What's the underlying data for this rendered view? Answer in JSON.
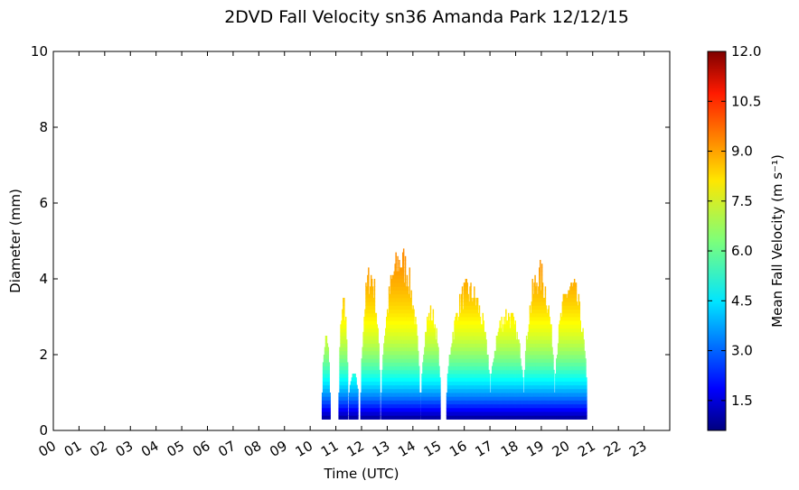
{
  "chart_data": {
    "type": "heatmap",
    "title": "2DVD Fall Velocity sn36 Amanda Park 12/12/15",
    "xlabel": "Time (UTC)",
    "ylabel": "Diameter (mm)",
    "x_ticks": [
      "00",
      "01",
      "02",
      "03",
      "04",
      "05",
      "06",
      "07",
      "08",
      "09",
      "10",
      "11",
      "12",
      "13",
      "14",
      "15",
      "16",
      "17",
      "18",
      "19",
      "20",
      "21",
      "22",
      "23"
    ],
    "xlim": [
      0,
      24
    ],
    "y_ticks": [
      "0",
      "2",
      "4",
      "6",
      "8",
      "10"
    ],
    "ylim": [
      0,
      10
    ],
    "colorbar": {
      "label": "Mean Fall Velocity (m s⁻¹)",
      "ticks": [
        "1.5",
        "3.0",
        "4.5",
        "6.0",
        "7.5",
        "9.0",
        "10.5",
        "12.0"
      ],
      "range": [
        0.6,
        12.0
      ],
      "colormap": "jet"
    },
    "ridges": [
      {
        "t0": 10.45,
        "t1": 10.75,
        "peak": 2.4
      },
      {
        "t0": 11.1,
        "t1": 11.45,
        "peak": 3.3
      },
      {
        "t0": 11.5,
        "t1": 11.85,
        "peak": 1.4
      },
      {
        "t0": 11.95,
        "t1": 12.7,
        "peak": 4.0
      },
      {
        "t0": 12.75,
        "t1": 14.25,
        "peak": 4.4
      },
      {
        "t0": 14.3,
        "t1": 15.05,
        "peak": 3.0
      },
      {
        "t0": 15.3,
        "t1": 17.0,
        "peak": 3.6
      },
      {
        "t0": 17.0,
        "t1": 18.3,
        "peak": 3.0
      },
      {
        "t0": 18.3,
        "t1": 19.5,
        "peak": 4.0
      },
      {
        "t0": 19.5,
        "t1": 20.75,
        "peak": 3.7
      }
    ]
  }
}
